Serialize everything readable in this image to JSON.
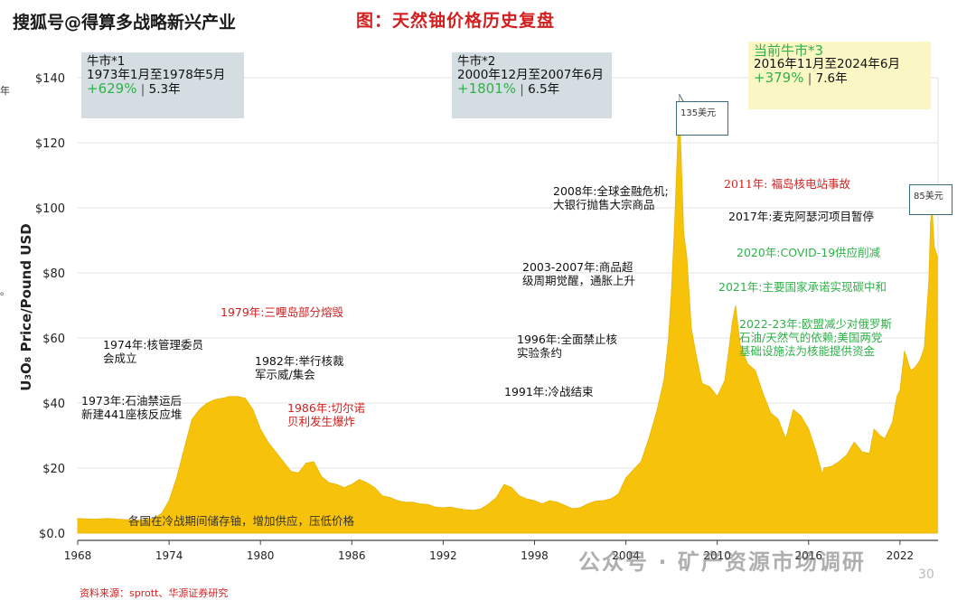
{
  "header": {
    "source_tag": "搜狐号@得算多战略新兴产业",
    "figure_title": "图：天然铀价格历史复盘",
    "data_source": "资料来源：sprott、华源证券研究",
    "watermark": "公众号 · 矿产资源市场调研",
    "page_number": "30"
  },
  "side_marks": [
    "年",
    "。"
  ],
  "colors": {
    "area_fill": "#f7c20a",
    "title_red": "#d21f1f",
    "gain_green": "#2fb24a",
    "bull1_box": "#d3dde2",
    "bull2_box": "#d3dde2",
    "bull3_box": "#fbf7c4",
    "callout_border": "#3a6b7a"
  },
  "bull_markets": [
    {
      "title": "牛市*1",
      "period": "1973年1月至1978年5月",
      "gain": "+629%",
      "sep": "|",
      "duration": "5.3年"
    },
    {
      "title": "牛市*2",
      "period": "2000年12月至2007年6月",
      "gain": "+1801%",
      "sep": "|",
      "duration": "6.5年"
    },
    {
      "title": "当前牛市*3",
      "period": "2016年11月至2024年6月",
      "gain": "+379%",
      "sep": "|",
      "duration": "7.6年"
    }
  ],
  "callouts": {
    "peak_2007": "135美元",
    "peak_2024": "85美元"
  },
  "annotations": {
    "a1973": [
      "1973年:石油禁运后",
      "新建441座核反应堆"
    ],
    "a1974": [
      "1974年:核管理委员",
      "会成立"
    ],
    "a1979": [
      "1979年:三哩岛部分熔毁"
    ],
    "a1982": [
      "1982年:举行核裁",
      "军示威/集会"
    ],
    "a1986": [
      "1986年:切尔诺",
      "贝利发生爆炸"
    ],
    "a_coldwar": [
      "各国在冷战期间储存铀，增加供应，压低价格"
    ],
    "a1991": [
      "1991年:冷战结束"
    ],
    "a1996": [
      "1996年:全面禁止核",
      "实验条约"
    ],
    "a2003": [
      "2003-2007年:商品超",
      "级周期觉醒，通胀上升"
    ],
    "a2008": [
      "2008年:全球金融危机;",
      "大银行抛售大宗商品"
    ],
    "a2011": [
      "2011年: 福岛核电站事故"
    ],
    "a2017": [
      "2017年:麦克阿瑟河项目暂停"
    ],
    "a2020": [
      "2020年:COVID-19供应削减"
    ],
    "a2021": [
      "2021年:主要国家承诺实现碳中和"
    ],
    "a2022": [
      "2022-23年:欧盟减少对俄罗斯",
      "石油/天然气的依赖;美国两党",
      "基础设施法为核能提供资金"
    ]
  },
  "chart_data": {
    "type": "area",
    "title": "图：天然铀价格历史复盘",
    "xlabel": "",
    "ylabel": "U₃O₈ Price/Pound USD",
    "xlim": [
      1968,
      2024.5
    ],
    "ylim": [
      0,
      140
    ],
    "x_ticks": [
      1968,
      1974,
      1980,
      1986,
      1992,
      1998,
      2004,
      2010,
      2016,
      2022
    ],
    "y_ticks": [
      0,
      20,
      40,
      60,
      80,
      100,
      120,
      140
    ],
    "y_tick_labels": [
      "$0.0",
      "$20",
      "$40",
      "$60",
      "$80",
      "$100",
      "$120",
      "$140"
    ],
    "grid": "horizontal",
    "series": [
      {
        "points": [
          [
            1968.0,
            4.5
          ],
          [
            1969.0,
            4.3
          ],
          [
            1970.0,
            4.5
          ],
          [
            1971.0,
            4.2
          ],
          [
            1972.0,
            4.0
          ],
          [
            1973.0,
            4.5
          ],
          [
            1973.5,
            6.0
          ],
          [
            1974.0,
            10.0
          ],
          [
            1974.5,
            17.0
          ],
          [
            1975.0,
            26.0
          ],
          [
            1975.5,
            35.0
          ],
          [
            1976.0,
            38.0
          ],
          [
            1976.5,
            40.0
          ],
          [
            1977.0,
            41.0
          ],
          [
            1977.5,
            41.5
          ],
          [
            1978.0,
            42.0
          ],
          [
            1978.5,
            42.0
          ],
          [
            1979.0,
            41.5
          ],
          [
            1979.5,
            38.0
          ],
          [
            1980.0,
            32.0
          ],
          [
            1980.5,
            28.0
          ],
          [
            1981.0,
            25.0
          ],
          [
            1981.5,
            22.0
          ],
          [
            1982.0,
            19.0
          ],
          [
            1982.5,
            18.5
          ],
          [
            1983.0,
            21.5
          ],
          [
            1983.5,
            22.0
          ],
          [
            1984.0,
            17.5
          ],
          [
            1984.5,
            15.5
          ],
          [
            1985.0,
            15.0
          ],
          [
            1985.5,
            14.0
          ],
          [
            1986.0,
            15.0
          ],
          [
            1986.5,
            16.5
          ],
          [
            1987.0,
            15.5
          ],
          [
            1987.5,
            14.0
          ],
          [
            1988.0,
            11.5
          ],
          [
            1988.5,
            11.0
          ],
          [
            1989.0,
            10.0
          ],
          [
            1989.5,
            9.5
          ],
          [
            1990.0,
            9.5
          ],
          [
            1990.5,
            9.0
          ],
          [
            1991.0,
            8.8
          ],
          [
            1991.5,
            8.0
          ],
          [
            1992.0,
            7.8
          ],
          [
            1992.5,
            8.0
          ],
          [
            1993.0,
            7.5
          ],
          [
            1993.5,
            7.2
          ],
          [
            1994.0,
            7.0
          ],
          [
            1994.5,
            7.5
          ],
          [
            1995.0,
            9.0
          ],
          [
            1995.5,
            11.0
          ],
          [
            1996.0,
            15.0
          ],
          [
            1996.5,
            14.0
          ],
          [
            1997.0,
            11.5
          ],
          [
            1997.5,
            10.5
          ],
          [
            1998.0,
            10.0
          ],
          [
            1998.5,
            9.0
          ],
          [
            1999.0,
            10.0
          ],
          [
            1999.5,
            9.5
          ],
          [
            2000.0,
            8.5
          ],
          [
            2000.5,
            7.5
          ],
          [
            2001.0,
            7.8
          ],
          [
            2001.5,
            9.0
          ],
          [
            2002.0,
            9.8
          ],
          [
            2002.5,
            10.0
          ],
          [
            2003.0,
            10.5
          ],
          [
            2003.5,
            12.0
          ],
          [
            2004.0,
            17.0
          ],
          [
            2004.5,
            19.5
          ],
          [
            2005.0,
            22.0
          ],
          [
            2005.5,
            29.0
          ],
          [
            2006.0,
            37.0
          ],
          [
            2006.5,
            47.0
          ],
          [
            2006.8,
            60.0
          ],
          [
            2007.0,
            75.0
          ],
          [
            2007.2,
            95.0
          ],
          [
            2007.4,
            120.0
          ],
          [
            2007.5,
            135.0
          ],
          [
            2007.6,
            120.0
          ],
          [
            2007.8,
            92.0
          ],
          [
            2008.0,
            85.0
          ],
          [
            2008.3,
            63.0
          ],
          [
            2008.6,
            55.0
          ],
          [
            2009.0,
            46.0
          ],
          [
            2009.5,
            45.0
          ],
          [
            2010.0,
            42.0
          ],
          [
            2010.5,
            47.0
          ],
          [
            2011.0,
            65.0
          ],
          [
            2011.2,
            70.0
          ],
          [
            2011.5,
            58.0
          ],
          [
            2012.0,
            52.0
          ],
          [
            2012.5,
            50.0
          ],
          [
            2013.0,
            43.0
          ],
          [
            2013.5,
            37.0
          ],
          [
            2014.0,
            35.0
          ],
          [
            2014.5,
            29.0
          ],
          [
            2015.0,
            38.0
          ],
          [
            2015.5,
            36.0
          ],
          [
            2016.0,
            32.0
          ],
          [
            2016.5,
            25.0
          ],
          [
            2016.9,
            18.0
          ],
          [
            2017.0,
            20.0
          ],
          [
            2017.5,
            20.5
          ],
          [
            2018.0,
            22.0
          ],
          [
            2018.5,
            24.0
          ],
          [
            2019.0,
            28.0
          ],
          [
            2019.5,
            25.0
          ],
          [
            2020.0,
            24.5
          ],
          [
            2020.3,
            32.0
          ],
          [
            2020.7,
            30.0
          ],
          [
            2021.0,
            29.0
          ],
          [
            2021.5,
            34.0
          ],
          [
            2021.8,
            42.0
          ],
          [
            2022.0,
            44.0
          ],
          [
            2022.3,
            56.0
          ],
          [
            2022.7,
            50.0
          ],
          [
            2023.0,
            51.0
          ],
          [
            2023.3,
            53.0
          ],
          [
            2023.6,
            57.0
          ],
          [
            2023.9,
            78.0
          ],
          [
            2024.0,
            95.0
          ],
          [
            2024.1,
            100.0
          ],
          [
            2024.25,
            88.0
          ],
          [
            2024.45,
            85.0
          ]
        ]
      }
    ]
  }
}
